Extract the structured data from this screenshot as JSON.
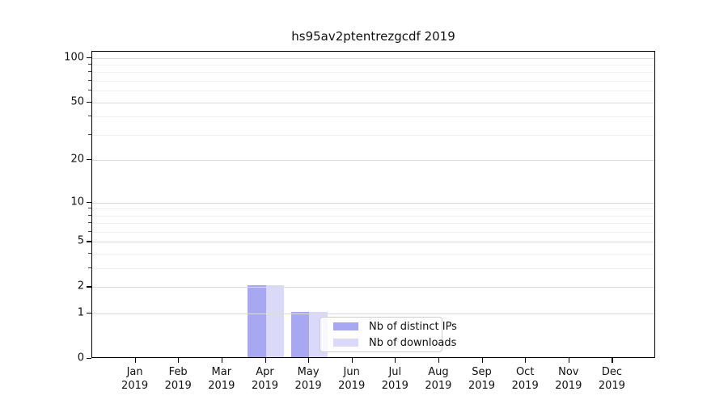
{
  "title": "hs95av2ptentrezgcdf 2019",
  "chart_data": {
    "type": "bar",
    "title": "hs95av2ptentrezgcdf 2019",
    "categories": [
      "Jan 2019",
      "Feb 2019",
      "Mar 2019",
      "Apr 2019",
      "May 2019",
      "Jun 2019",
      "Jul 2019",
      "Aug 2019",
      "Sep 2019",
      "Oct 2019",
      "Nov 2019",
      "Dec 2019"
    ],
    "x_months": [
      "Jan",
      "Feb",
      "Mar",
      "Apr",
      "May",
      "Jun",
      "Jul",
      "Aug",
      "Sep",
      "Oct",
      "Nov",
      "Dec"
    ],
    "x_year": "2019",
    "series": [
      {
        "name": "Nb of distinct IPs",
        "color": "#a7a7f2",
        "values": [
          0,
          0,
          0,
          2,
          1,
          0,
          0,
          0,
          0,
          0,
          0,
          0
        ]
      },
      {
        "name": "Nb of downloads",
        "color": "#dad9fa",
        "values": [
          0,
          0,
          0,
          2,
          1,
          0,
          0,
          0,
          0,
          0,
          0,
          0
        ]
      }
    ],
    "yscale": "log1p",
    "ylim": [
      0,
      110
    ],
    "y_major_ticks": [
      0,
      1,
      2,
      5,
      10,
      20,
      50,
      100
    ],
    "y_minor_ticks": [
      3,
      4,
      6,
      7,
      8,
      9,
      30,
      40,
      60,
      70,
      80,
      90
    ],
    "grid": "horizontal",
    "legend": {
      "position": "inside lower center",
      "entries": [
        "Nb of distinct IPs",
        "Nb of downloads"
      ]
    },
    "colors": {
      "axis": "#000000",
      "grid_major": "#dcdcdc",
      "grid_minor": "#f0f0f0",
      "legend_border": "#cccccc"
    }
  }
}
